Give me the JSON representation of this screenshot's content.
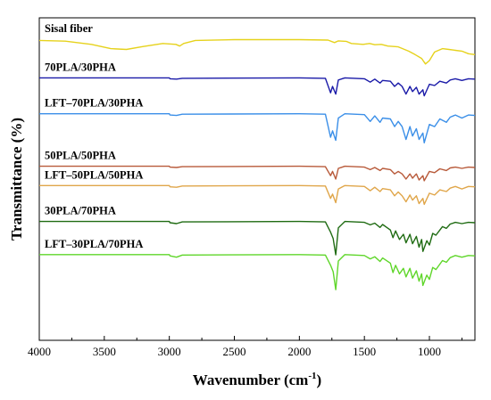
{
  "chart_data": {
    "type": "line",
    "xlabel": "Wavenumber (cm",
    "xlabel_sup": "-1",
    "xlabel_close": ")",
    "ylabel": "Transmittance (%)",
    "xlim": [
      4000,
      650
    ],
    "x_reversed": true,
    "x_ticks": [
      "4000",
      "3500",
      "3000",
      "2500",
      "2000",
      "1500",
      "1000"
    ],
    "x_tick_values": [
      4000,
      3500,
      3000,
      2500,
      2000,
      1500,
      1000
    ],
    "grid": false,
    "series": [
      {
        "name": "Sisal fiber",
        "color": "#e6d21c",
        "offset": 0.0,
        "points": [
          [
            4000,
            0.03
          ],
          [
            3800,
            0.045
          ],
          [
            3600,
            0.12
          ],
          [
            3450,
            0.22
          ],
          [
            3330,
            0.24
          ],
          [
            3200,
            0.17
          ],
          [
            3050,
            0.1
          ],
          [
            2950,
            0.12
          ],
          [
            2920,
            0.16
          ],
          [
            2890,
            0.1
          ],
          [
            2800,
            0.03
          ],
          [
            2500,
            0.01
          ],
          [
            2000,
            0.01
          ],
          [
            1780,
            0.02
          ],
          [
            1730,
            0.08
          ],
          [
            1700,
            0.04
          ],
          [
            1640,
            0.05
          ],
          [
            1600,
            0.1
          ],
          [
            1510,
            0.12
          ],
          [
            1460,
            0.1
          ],
          [
            1420,
            0.13
          ],
          [
            1370,
            0.12
          ],
          [
            1320,
            0.16
          ],
          [
            1240,
            0.18
          ],
          [
            1160,
            0.28
          ],
          [
            1110,
            0.36
          ],
          [
            1060,
            0.45
          ],
          [
            1030,
            0.58
          ],
          [
            1000,
            0.5
          ],
          [
            960,
            0.3
          ],
          [
            900,
            0.22
          ],
          [
            850,
            0.24
          ],
          [
            800,
            0.26
          ],
          [
            750,
            0.28
          ],
          [
            700,
            0.34
          ],
          [
            650,
            0.36
          ]
        ]
      },
      {
        "name": "70PLA/30PHA",
        "color": "#1a1aa8",
        "offset": 0.7,
        "points": [
          [
            4000,
            0.0
          ],
          [
            3000,
            0.0
          ],
          [
            2995,
            0.02
          ],
          [
            2945,
            0.03
          ],
          [
            2900,
            0.01
          ],
          [
            2000,
            0.0
          ],
          [
            1800,
            0.01
          ],
          [
            1760,
            0.35
          ],
          [
            1745,
            0.2
          ],
          [
            1720,
            0.38
          ],
          [
            1700,
            0.05
          ],
          [
            1650,
            0.0
          ],
          [
            1500,
            0.02
          ],
          [
            1455,
            0.1
          ],
          [
            1420,
            0.03
          ],
          [
            1380,
            0.12
          ],
          [
            1360,
            0.06
          ],
          [
            1300,
            0.08
          ],
          [
            1268,
            0.2
          ],
          [
            1240,
            0.12
          ],
          [
            1210,
            0.2
          ],
          [
            1180,
            0.38
          ],
          [
            1150,
            0.2
          ],
          [
            1130,
            0.32
          ],
          [
            1100,
            0.22
          ],
          [
            1080,
            0.38
          ],
          [
            1050,
            0.28
          ],
          [
            1040,
            0.42
          ],
          [
            1000,
            0.15
          ],
          [
            960,
            0.18
          ],
          [
            920,
            0.08
          ],
          [
            870,
            0.12
          ],
          [
            840,
            0.05
          ],
          [
            800,
            0.02
          ],
          [
            750,
            0.06
          ],
          [
            700,
            0.02
          ],
          [
            650,
            0.03
          ]
        ]
      },
      {
        "name": "LFT‒70PLA/30PHA",
        "color": "#3b8fe8",
        "offset": 1.35,
        "points": [
          [
            4000,
            0.0
          ],
          [
            3000,
            0.0
          ],
          [
            2995,
            0.03
          ],
          [
            2945,
            0.04
          ],
          [
            2900,
            0.01
          ],
          [
            2000,
            0.0
          ],
          [
            1800,
            0.01
          ],
          [
            1760,
            0.55
          ],
          [
            1745,
            0.4
          ],
          [
            1720,
            0.62
          ],
          [
            1700,
            0.1
          ],
          [
            1650,
            0.0
          ],
          [
            1500,
            0.02
          ],
          [
            1455,
            0.18
          ],
          [
            1420,
            0.05
          ],
          [
            1380,
            0.2
          ],
          [
            1360,
            0.1
          ],
          [
            1300,
            0.12
          ],
          [
            1268,
            0.3
          ],
          [
            1240,
            0.18
          ],
          [
            1210,
            0.3
          ],
          [
            1180,
            0.6
          ],
          [
            1150,
            0.3
          ],
          [
            1130,
            0.52
          ],
          [
            1100,
            0.35
          ],
          [
            1080,
            0.6
          ],
          [
            1050,
            0.45
          ],
          [
            1040,
            0.68
          ],
          [
            1000,
            0.25
          ],
          [
            960,
            0.3
          ],
          [
            920,
            0.12
          ],
          [
            870,
            0.2
          ],
          [
            840,
            0.08
          ],
          [
            800,
            0.03
          ],
          [
            750,
            0.1
          ],
          [
            700,
            0.03
          ],
          [
            650,
            0.04
          ]
        ]
      },
      {
        "name": "50PLA/50PHA",
        "color": "#b85a3a",
        "offset": 2.3,
        "points": [
          [
            4000,
            0.0
          ],
          [
            3000,
            0.0
          ],
          [
            2995,
            0.02
          ],
          [
            2945,
            0.03
          ],
          [
            2900,
            0.01
          ],
          [
            2000,
            0.0
          ],
          [
            1800,
            0.01
          ],
          [
            1760,
            0.22
          ],
          [
            1745,
            0.12
          ],
          [
            1720,
            0.3
          ],
          [
            1700,
            0.05
          ],
          [
            1650,
            0.0
          ],
          [
            1500,
            0.02
          ],
          [
            1455,
            0.08
          ],
          [
            1420,
            0.03
          ],
          [
            1380,
            0.1
          ],
          [
            1360,
            0.05
          ],
          [
            1300,
            0.08
          ],
          [
            1268,
            0.18
          ],
          [
            1240,
            0.12
          ],
          [
            1210,
            0.18
          ],
          [
            1180,
            0.3
          ],
          [
            1150,
            0.18
          ],
          [
            1130,
            0.28
          ],
          [
            1100,
            0.18
          ],
          [
            1080,
            0.32
          ],
          [
            1050,
            0.22
          ],
          [
            1040,
            0.34
          ],
          [
            1000,
            0.12
          ],
          [
            960,
            0.15
          ],
          [
            920,
            0.06
          ],
          [
            870,
            0.1
          ],
          [
            840,
            0.04
          ],
          [
            800,
            0.02
          ],
          [
            750,
            0.05
          ],
          [
            700,
            0.02
          ],
          [
            650,
            0.03
          ]
        ]
      },
      {
        "name": "LFT‒50PLA/50PHA",
        "color": "#e0a64a",
        "offset": 2.65,
        "points": [
          [
            4000,
            0.0
          ],
          [
            3000,
            0.0
          ],
          [
            2995,
            0.03
          ],
          [
            2945,
            0.04
          ],
          [
            2900,
            0.01
          ],
          [
            2000,
            0.0
          ],
          [
            1800,
            0.01
          ],
          [
            1760,
            0.3
          ],
          [
            1745,
            0.2
          ],
          [
            1720,
            0.4
          ],
          [
            1700,
            0.08
          ],
          [
            1650,
            0.0
          ],
          [
            1500,
            0.02
          ],
          [
            1455,
            0.12
          ],
          [
            1420,
            0.04
          ],
          [
            1380,
            0.14
          ],
          [
            1360,
            0.07
          ],
          [
            1300,
            0.1
          ],
          [
            1268,
            0.24
          ],
          [
            1240,
            0.15
          ],
          [
            1210,
            0.24
          ],
          [
            1180,
            0.38
          ],
          [
            1150,
            0.22
          ],
          [
            1130,
            0.34
          ],
          [
            1100,
            0.24
          ],
          [
            1080,
            0.42
          ],
          [
            1050,
            0.3
          ],
          [
            1040,
            0.44
          ],
          [
            1000,
            0.18
          ],
          [
            960,
            0.22
          ],
          [
            920,
            0.1
          ],
          [
            870,
            0.14
          ],
          [
            840,
            0.06
          ],
          [
            800,
            0.02
          ],
          [
            750,
            0.08
          ],
          [
            700,
            0.02
          ],
          [
            650,
            0.03
          ]
        ]
      },
      {
        "name": "30PLA/70PHA",
        "color": "#1f6b12",
        "offset": 3.3,
        "points": [
          [
            4000,
            0.0
          ],
          [
            3000,
            0.0
          ],
          [
            2995,
            0.03
          ],
          [
            2945,
            0.05
          ],
          [
            2900,
            0.01
          ],
          [
            2000,
            0.0
          ],
          [
            1800,
            0.01
          ],
          [
            1760,
            0.25
          ],
          [
            1740,
            0.4
          ],
          [
            1720,
            0.78
          ],
          [
            1700,
            0.15
          ],
          [
            1650,
            0.0
          ],
          [
            1500,
            0.02
          ],
          [
            1455,
            0.08
          ],
          [
            1420,
            0.04
          ],
          [
            1380,
            0.14
          ],
          [
            1360,
            0.07
          ],
          [
            1300,
            0.2
          ],
          [
            1280,
            0.38
          ],
          [
            1260,
            0.22
          ],
          [
            1230,
            0.42
          ],
          [
            1200,
            0.3
          ],
          [
            1180,
            0.5
          ],
          [
            1150,
            0.3
          ],
          [
            1130,
            0.52
          ],
          [
            1100,
            0.35
          ],
          [
            1080,
            0.6
          ],
          [
            1060,
            0.42
          ],
          [
            1050,
            0.7
          ],
          [
            1020,
            0.45
          ],
          [
            1000,
            0.55
          ],
          [
            975,
            0.28
          ],
          [
            950,
            0.32
          ],
          [
            900,
            0.12
          ],
          [
            870,
            0.16
          ],
          [
            840,
            0.06
          ],
          [
            800,
            0.02
          ],
          [
            750,
            0.05
          ],
          [
            700,
            0.02
          ],
          [
            650,
            0.03
          ]
        ]
      },
      {
        "name": "LFT‒30PLA/70PHA",
        "color": "#5fd62a",
        "offset": 3.9,
        "points": [
          [
            4000,
            0.0
          ],
          [
            3000,
            0.0
          ],
          [
            2995,
            0.03
          ],
          [
            2945,
            0.06
          ],
          [
            2900,
            0.01
          ],
          [
            2000,
            0.0
          ],
          [
            1800,
            0.01
          ],
          [
            1760,
            0.25
          ],
          [
            1740,
            0.4
          ],
          [
            1720,
            0.82
          ],
          [
            1700,
            0.15
          ],
          [
            1650,
            0.0
          ],
          [
            1500,
            0.02
          ],
          [
            1455,
            0.1
          ],
          [
            1420,
            0.05
          ],
          [
            1380,
            0.16
          ],
          [
            1360,
            0.08
          ],
          [
            1300,
            0.2
          ],
          [
            1280,
            0.42
          ],
          [
            1260,
            0.25
          ],
          [
            1230,
            0.45
          ],
          [
            1200,
            0.32
          ],
          [
            1180,
            0.52
          ],
          [
            1150,
            0.32
          ],
          [
            1130,
            0.55
          ],
          [
            1100,
            0.38
          ],
          [
            1080,
            0.62
          ],
          [
            1060,
            0.45
          ],
          [
            1050,
            0.72
          ],
          [
            1020,
            0.48
          ],
          [
            1000,
            0.58
          ],
          [
            975,
            0.3
          ],
          [
            950,
            0.35
          ],
          [
            900,
            0.14
          ],
          [
            870,
            0.18
          ],
          [
            840,
            0.07
          ],
          [
            800,
            0.02
          ],
          [
            750,
            0.06
          ],
          [
            700,
            0.02
          ],
          [
            650,
            0.03
          ]
        ]
      }
    ]
  }
}
